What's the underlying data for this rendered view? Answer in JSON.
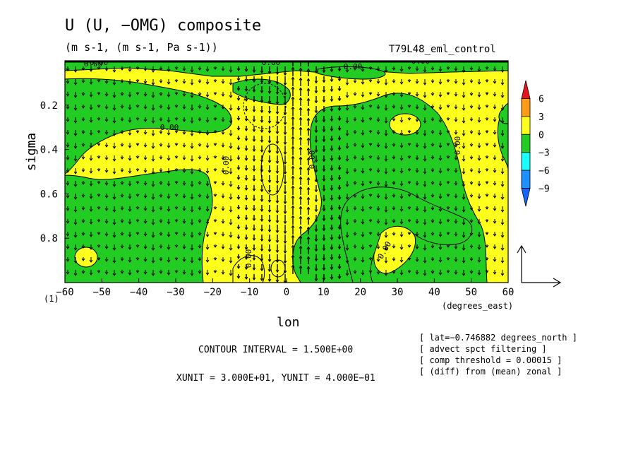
{
  "chart_data": {
    "type": "contour",
    "title": "U (U, −OMG) composite",
    "units": "(m s-1, (m s-1, Pa s-1))",
    "run_name": "T79L48_eml_control",
    "xlabel": "lon",
    "x_units": "(degrees_east)",
    "ylabel": "sigma",
    "xlim": [
      -60,
      60
    ],
    "ylim": [
      1.0,
      0.0
    ],
    "x_ticks": [
      "−60",
      "−50",
      "−40",
      "−30",
      "−20",
      "−10",
      "0",
      "10",
      "20",
      "30",
      "40",
      "50",
      "60"
    ],
    "y_ticks": [
      "0.2",
      "0.4",
      "0.6",
      "0.8"
    ],
    "y_tick_values": [
      0.2,
      0.4,
      0.6,
      0.8
    ],
    "corner_label": "(1)",
    "contour_labels": [
      "0.00",
      "0.00",
      "0.00",
      "0.00",
      "0.00",
      "0.00",
      "0.00",
      "0.00",
      "0.00",
      "0.00",
      "0.00"
    ],
    "colorbar": {
      "levels": [
        "6",
        "3",
        "0",
        "−3",
        "−6",
        "−9"
      ],
      "colors": [
        "#e8141a",
        "#ff9a1a",
        "#ffff1e",
        "#22cc22",
        "#19ffff",
        "#1e90ff",
        "#1464ff"
      ]
    },
    "contour_interval": "CONTOUR INTERVAL = 1.500E+00",
    "vector_units": "XUNIT = 3.000E+01, YUNIT = 4.000E−01",
    "fill_colors": {
      "positive": "#ffff1e",
      "negative": "#22cc22"
    }
  },
  "notes": [
    "[ lat=−0.746882 degrees_north ]",
    "[ advect spct filtering ]",
    "[ comp threshold = 0.00015 ]",
    "[ (diff) from (mean) zonal ]"
  ]
}
